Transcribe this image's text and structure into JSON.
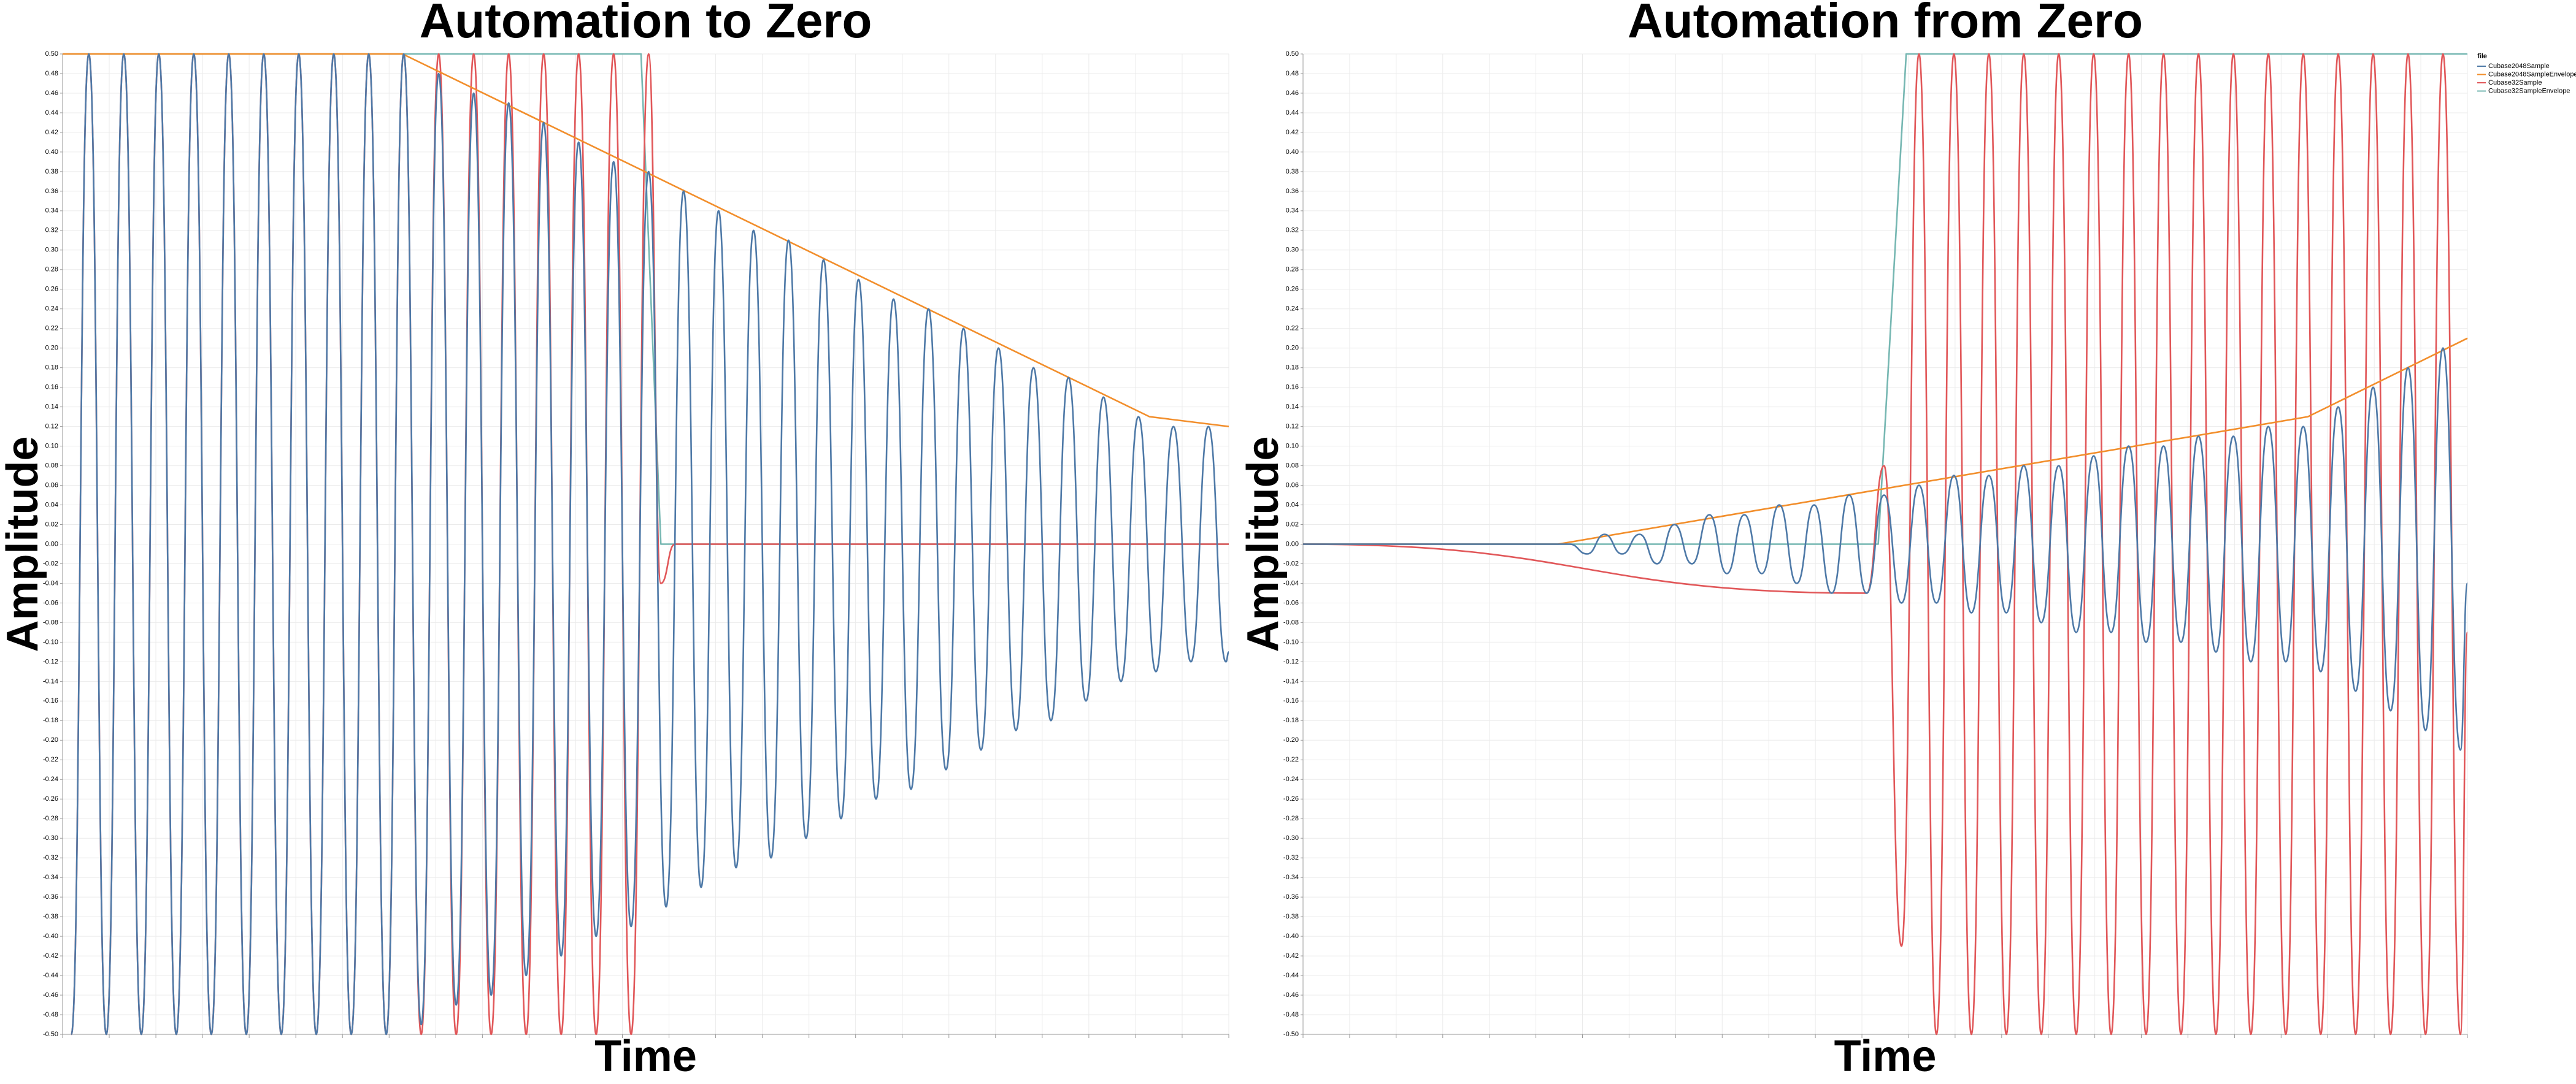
{
  "chart_data": [
    {
      "type": "line",
      "title": "Automation to Zero",
      "xlabel": "Time",
      "ylabel": "Amplitude",
      "xlim": [
        0,
        100
      ],
      "ylim": [
        -0.5,
        0.5
      ],
      "xticks": [
        0,
        4,
        8,
        12,
        16,
        20,
        24,
        28,
        32,
        36,
        40,
        44,
        48,
        52,
        56,
        60,
        64,
        68,
        72,
        76,
        80,
        84,
        88,
        92,
        96,
        100
      ],
      "yticks": [
        {
          "value": -0.5,
          "label": "-0.50"
        },
        {
          "value": -0.48,
          "label": "-0.48"
        },
        {
          "value": -0.46,
          "label": "-0.46"
        },
        {
          "value": -0.44,
          "label": "-0.44"
        },
        {
          "value": -0.42,
          "label": "-0.42"
        },
        {
          "value": -0.4,
          "label": "-0.40"
        },
        {
          "value": -0.38,
          "label": "-0.38"
        },
        {
          "value": -0.36,
          "label": "-0.36"
        },
        {
          "value": -0.34,
          "label": "-0.34"
        },
        {
          "value": -0.32,
          "label": "-0.32"
        },
        {
          "value": -0.3,
          "label": "-0.30"
        },
        {
          "value": -0.28,
          "label": "-0.28"
        },
        {
          "value": -0.26,
          "label": "-0.26"
        },
        {
          "value": -0.24,
          "label": "-0.24"
        },
        {
          "value": -0.22,
          "label": "-0.22"
        },
        {
          "value": -0.2,
          "label": "-0.20"
        },
        {
          "value": -0.18,
          "label": "-0.18"
        },
        {
          "value": -0.16,
          "label": "-0.16"
        },
        {
          "value": -0.14,
          "label": "-0.14"
        },
        {
          "value": -0.12,
          "label": "-0.12"
        },
        {
          "value": -0.1,
          "label": "-0.10"
        },
        {
          "value": -0.08,
          "label": "-0.08"
        },
        {
          "value": -0.06,
          "label": "-0.06"
        },
        {
          "value": -0.04,
          "label": "-0.04"
        },
        {
          "value": -0.02,
          "label": "-0.02"
        },
        {
          "value": 0,
          "label": "0.00"
        },
        {
          "value": 0.02,
          "label": "0.02"
        },
        {
          "value": 0.04,
          "label": "0.04"
        },
        {
          "value": 0.06,
          "label": "0.06"
        },
        {
          "value": 0.08,
          "label": "0.08"
        },
        {
          "value": 0.1,
          "label": "0.10"
        },
        {
          "value": 0.12,
          "label": "0.12"
        },
        {
          "value": 0.14,
          "label": "0.14"
        },
        {
          "value": 0.16,
          "label": "0.16"
        },
        {
          "value": 0.18,
          "label": "0.18"
        },
        {
          "value": 0.2,
          "label": "0.20"
        },
        {
          "value": 0.22,
          "label": "0.22"
        },
        {
          "value": 0.24,
          "label": "0.24"
        },
        {
          "value": 0.26,
          "label": "0.26"
        },
        {
          "value": 0.28,
          "label": "0.28"
        },
        {
          "value": 0.3,
          "label": "0.30"
        },
        {
          "value": 0.32,
          "label": "0.32"
        },
        {
          "value": 0.34,
          "label": "0.34"
        },
        {
          "value": 0.36,
          "label": "0.36"
        },
        {
          "value": 0.38,
          "label": "0.38"
        },
        {
          "value": 0.4,
          "label": "0.40"
        },
        {
          "value": 0.42,
          "label": "0.42"
        },
        {
          "value": 0.44,
          "label": "0.44"
        },
        {
          "value": 0.46,
          "label": "0.46"
        },
        {
          "value": 0.48,
          "label": "0.48"
        },
        {
          "value": 0.5,
          "label": "0.50"
        }
      ],
      "grid": true,
      "series": [
        {
          "color": "#4e79a7",
          "smooth": true,
          "x": [
            0.75,
            2.25,
            3.75,
            5.25,
            6.75,
            8.25,
            9.75,
            11.25,
            12.75,
            14.25,
            15.75,
            17.25,
            18.75,
            20.25,
            21.75,
            23.25,
            24.75,
            26.25,
            27.75,
            29.25,
            30.75,
            32.25,
            33.75,
            35.25,
            36.75,
            38.25,
            39.75,
            41.25,
            42.75,
            44.25,
            45.75,
            47.25,
            48.75,
            50.25,
            51.75,
            53.25,
            54.75,
            56.25,
            57.75,
            59.25,
            60.75,
            62.25,
            63.75,
            65.25,
            66.75,
            68.25,
            69.75,
            71.25,
            72.75,
            74.25,
            75.75,
            77.25,
            78.75,
            80.25,
            81.75,
            83.25,
            84.75,
            86.25,
            87.75,
            89.25,
            90.75,
            92.25,
            93.75,
            95.25,
            96.75,
            98.25,
            99.75,
            100
          ],
          "values": [
            -0.5,
            0.5,
            -0.5,
            0.5,
            -0.5,
            0.5,
            -0.5,
            0.5,
            -0.5,
            0.5,
            -0.5,
            0.5,
            -0.5,
            0.5,
            -0.5,
            0.5,
            -0.5,
            0.5,
            -0.5,
            0.5,
            -0.49,
            0.48,
            -0.47,
            0.46,
            -0.46,
            0.45,
            -0.44,
            0.43,
            -0.42,
            0.41,
            -0.4,
            0.39,
            -0.39,
            0.38,
            -0.37,
            0.36,
            -0.35,
            0.34,
            -0.33,
            0.32,
            -0.32,
            0.31,
            -0.3,
            0.29,
            -0.28,
            0.27,
            -0.26,
            0.25,
            -0.25,
            0.24,
            -0.23,
            0.22,
            -0.21,
            0.2,
            -0.19,
            0.18,
            -0.18,
            0.17,
            -0.16,
            0.15,
            -0.14,
            0.13,
            -0.13,
            0.12,
            -0.12,
            0.12,
            -0.12,
            -0.11
          ]
        },
        {
          "color": "#f28e2b",
          "smooth": false,
          "x": [
            0,
            29.15,
            93.2,
            100
          ],
          "values": [
            0.5,
            0.5,
            0.13,
            0.12
          ]
        },
        {
          "color": "#e15759",
          "smooth": true,
          "x": [
            0.75,
            2.25,
            3.75,
            5.25,
            6.75,
            8.25,
            9.75,
            11.25,
            12.75,
            14.25,
            15.75,
            17.25,
            18.75,
            20.25,
            21.75,
            23.25,
            24.75,
            26.25,
            27.75,
            29.25,
            30.75,
            32.25,
            33.75,
            35.25,
            36.75,
            38.25,
            39.75,
            41.25,
            42.75,
            44.25,
            45.75,
            47.25,
            48.75,
            50.25,
            51.3,
            52.5,
            100
          ],
          "values": [
            -0.5,
            0.5,
            -0.5,
            0.5,
            -0.5,
            0.5,
            -0.5,
            0.5,
            -0.5,
            0.5,
            -0.5,
            0.5,
            -0.5,
            0.5,
            -0.5,
            0.5,
            -0.5,
            0.5,
            -0.5,
            0.5,
            -0.5,
            0.5,
            -0.5,
            0.5,
            -0.5,
            0.5,
            -0.5,
            0.5,
            -0.5,
            0.5,
            -0.5,
            0.5,
            -0.5,
            0.5,
            -0.04,
            0,
            0
          ]
        },
        {
          "color": "#76b7b2",
          "smooth": false,
          "x": [
            0,
            49.6,
            51.3,
            100
          ],
          "values": [
            0.5,
            0.5,
            0,
            0
          ]
        }
      ]
    },
    {
      "type": "line",
      "title": "Automation from Zero",
      "xlabel": "Time",
      "ylabel": "Amplitude",
      "xlim": [
        0,
        100
      ],
      "ylim": [
        -0.5,
        0.5
      ],
      "xticks": [
        0,
        4,
        8,
        12,
        16,
        20,
        24,
        28,
        32,
        36,
        40,
        44,
        48,
        52,
        56,
        60,
        64,
        68,
        72,
        76,
        80,
        84,
        88,
        92,
        96,
        100
      ],
      "yticks": [
        {
          "value": -0.5,
          "label": "-0.50"
        },
        {
          "value": -0.48,
          "label": "-0.48"
        },
        {
          "value": -0.46,
          "label": "-0.46"
        },
        {
          "value": -0.44,
          "label": "-0.44"
        },
        {
          "value": -0.42,
          "label": "-0.42"
        },
        {
          "value": -0.4,
          "label": "-0.40"
        },
        {
          "value": -0.38,
          "label": "-0.38"
        },
        {
          "value": -0.36,
          "label": "-0.36"
        },
        {
          "value": -0.34,
          "label": "-0.34"
        },
        {
          "value": -0.32,
          "label": "-0.32"
        },
        {
          "value": -0.3,
          "label": "-0.30"
        },
        {
          "value": -0.28,
          "label": "-0.28"
        },
        {
          "value": -0.26,
          "label": "-0.26"
        },
        {
          "value": -0.24,
          "label": "-0.24"
        },
        {
          "value": -0.22,
          "label": "-0.22"
        },
        {
          "value": -0.2,
          "label": "-0.20"
        },
        {
          "value": -0.18,
          "label": "-0.18"
        },
        {
          "value": -0.16,
          "label": "-0.16"
        },
        {
          "value": -0.14,
          "label": "-0.14"
        },
        {
          "value": -0.12,
          "label": "-0.12"
        },
        {
          "value": -0.1,
          "label": "-0.10"
        },
        {
          "value": -0.08,
          "label": "-0.08"
        },
        {
          "value": -0.06,
          "label": "-0.06"
        },
        {
          "value": -0.04,
          "label": "-0.04"
        },
        {
          "value": -0.02,
          "label": "-0.02"
        },
        {
          "value": 0,
          "label": "0.00"
        },
        {
          "value": 0.02,
          "label": "0.02"
        },
        {
          "value": 0.04,
          "label": "0.04"
        },
        {
          "value": 0.06,
          "label": "0.06"
        },
        {
          "value": 0.08,
          "label": "0.08"
        },
        {
          "value": 0.1,
          "label": "0.10"
        },
        {
          "value": 0.12,
          "label": "0.12"
        },
        {
          "value": 0.14,
          "label": "0.14"
        },
        {
          "value": 0.16,
          "label": "0.16"
        },
        {
          "value": 0.18,
          "label": "0.18"
        },
        {
          "value": 0.2,
          "label": "0.20"
        },
        {
          "value": 0.22,
          "label": "0.22"
        },
        {
          "value": 0.24,
          "label": "0.24"
        },
        {
          "value": 0.26,
          "label": "0.26"
        },
        {
          "value": 0.28,
          "label": "0.28"
        },
        {
          "value": 0.3,
          "label": "0.30"
        },
        {
          "value": 0.32,
          "label": "0.32"
        },
        {
          "value": 0.34,
          "label": "0.34"
        },
        {
          "value": 0.36,
          "label": "0.36"
        },
        {
          "value": 0.38,
          "label": "0.38"
        },
        {
          "value": 0.4,
          "label": "0.40"
        },
        {
          "value": 0.42,
          "label": "0.42"
        },
        {
          "value": 0.44,
          "label": "0.44"
        },
        {
          "value": 0.46,
          "label": "0.46"
        },
        {
          "value": 0.48,
          "label": "0.48"
        },
        {
          "value": 0.5,
          "label": "0.50"
        }
      ],
      "grid": true,
      "legend": "right",
      "legend_title": "file",
      "series": [
        {
          "name": "Cubase2048Sample",
          "color": "#4e79a7",
          "smooth": true,
          "x": [
            0,
            21.9,
            22.9,
            24.4,
            25.9,
            27.4,
            28.9,
            30.4,
            31.9,
            33.4,
            34.9,
            36.4,
            37.9,
            39.4,
            40.9,
            42.4,
            43.9,
            45.4,
            46.9,
            48.4,
            49.9,
            51.4,
            52.9,
            54.4,
            55.9,
            57.4,
            58.9,
            60.4,
            61.9,
            63.4,
            64.9,
            66.4,
            67.9,
            69.4,
            70.9,
            72.4,
            73.9,
            75.4,
            76.9,
            78.4,
            79.9,
            81.4,
            82.9,
            84.4,
            85.9,
            87.4,
            88.9,
            90.4,
            91.9,
            93.4,
            94.9,
            96.4,
            97.9,
            99.4,
            100
          ],
          "values": [
            0,
            0,
            0,
            -0.01,
            0.01,
            -0.01,
            0.01,
            -0.02,
            0.02,
            -0.02,
            0.03,
            -0.03,
            0.03,
            -0.03,
            0.04,
            -0.04,
            0.04,
            -0.05,
            0.05,
            -0.05,
            0.05,
            -0.06,
            0.06,
            -0.06,
            0.07,
            -0.07,
            0.07,
            -0.07,
            0.08,
            -0.08,
            0.08,
            -0.09,
            0.09,
            -0.09,
            0.1,
            -0.1,
            0.1,
            -0.1,
            0.11,
            -0.11,
            0.11,
            -0.12,
            0.12,
            -0.12,
            0.12,
            -0.13,
            0.14,
            -0.15,
            0.16,
            -0.17,
            0.18,
            -0.19,
            0.2,
            -0.21,
            -0.04
          ]
        },
        {
          "name": "Cubase2048SampleEnvelope",
          "color": "#f28e2b",
          "smooth": false,
          "x": [
            0,
            21.9,
            86.3,
            100
          ],
          "values": [
            0,
            0,
            0.13,
            0.21
          ]
        },
        {
          "name": "Cubase32Sample",
          "color": "#e15759",
          "smooth": true,
          "x": [
            0,
            48.4,
            49.9,
            51.4,
            52.9,
            54.4,
            55.9,
            57.4,
            58.9,
            60.4,
            61.9,
            63.4,
            64.9,
            66.4,
            67.9,
            69.4,
            70.9,
            72.4,
            73.9,
            75.4,
            76.9,
            78.4,
            79.9,
            81.4,
            82.9,
            84.4,
            85.9,
            87.4,
            88.9,
            90.4,
            91.9,
            93.4,
            94.9,
            96.4,
            97.9,
            99.4,
            100
          ],
          "values": [
            0,
            -0.05,
            0.08,
            -0.41,
            0.5,
            -0.5,
            0.5,
            -0.5,
            0.5,
            -0.5,
            0.5,
            -0.5,
            0.5,
            -0.5,
            0.5,
            -0.5,
            0.5,
            -0.5,
            0.5,
            -0.5,
            0.5,
            -0.5,
            0.5,
            -0.5,
            0.5,
            -0.5,
            0.5,
            -0.5,
            0.5,
            -0.5,
            0.5,
            -0.5,
            0.5,
            -0.5,
            0.5,
            -0.5,
            -0.09
          ]
        },
        {
          "name": "Cubase32SampleEnvelope",
          "color": "#76b7b2",
          "smooth": false,
          "x": [
            0,
            49.4,
            51.8,
            100
          ],
          "values": [
            0,
            0,
            0.5,
            0.5
          ]
        }
      ]
    }
  ]
}
